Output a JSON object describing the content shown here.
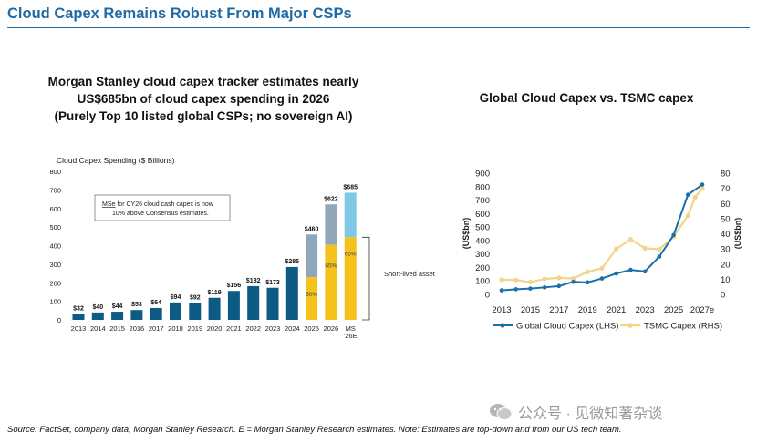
{
  "header": {
    "title": "Cloud Capex Remains Robust From Major CSPs"
  },
  "left_panel": {
    "heading_lines": [
      "Morgan Stanley cloud capex tracker estimates nearly",
      "US$685bn of cloud capex spending in 2026",
      "(Purely Top 10 listed global CSPs; no sovereign AI)"
    ]
  },
  "right_panel": {
    "heading": "Global Cloud Capex vs. TSMC capex"
  },
  "footer": {
    "source": "Source: FactSet, company data, Morgan Stanley Research. E = Morgan Stanley Research estimates. Note: Estimates are top-down and from our US tech team.",
    "watermark": "公众号 · 见微知著杂谈"
  },
  "chart_data": [
    {
      "type": "bar",
      "title": "Cloud Capex Spending ($ Billions)",
      "categories": [
        "2013",
        "2014",
        "2015",
        "2016",
        "2017",
        "2018",
        "2019",
        "2020",
        "2021",
        "2022",
        "2023",
        "2024",
        "2025",
        "2026",
        "MS\n'26E"
      ],
      "values": [
        32,
        40,
        44,
        53,
        64,
        94,
        92,
        119,
        156,
        182,
        173,
        285,
        460,
        622,
        685
      ],
      "value_labels": [
        "$32",
        "$40",
        "$44",
        "$53",
        "$64",
        "$94",
        "$92",
        "$119",
        "$156",
        "$182",
        "$173",
        "$285",
        "$460",
        "$622",
        "$685"
      ],
      "stacks": [
        {
          "index": 12,
          "short_lived": 230,
          "label": "50%"
        },
        {
          "index": 13,
          "short_lived": 404,
          "label": "65%"
        },
        {
          "index": 14,
          "short_lived": 445,
          "label": "65%"
        }
      ],
      "yticks": [
        0,
        100,
        200,
        300,
        400,
        500,
        600,
        700,
        800
      ],
      "ylim": [
        0,
        800
      ],
      "annotation": "MSe for CY26 cloud cash capex is now 10% above Consensus estimates.",
      "annotation_underlined": "MSe",
      "bracket_label": "Short-lived asset",
      "colors": {
        "base": "#0d5a85",
        "stack_base_estimate": "#8fa7b9",
        "short_lived": "#f5c21b",
        "top_ms": "#7fc8e5"
      }
    },
    {
      "type": "line",
      "x": [
        2013,
        2014,
        2015,
        2016,
        2017,
        2018,
        2019,
        2020,
        2021,
        2022,
        2023,
        2024,
        2025,
        2026,
        2027
      ],
      "xticks": [
        "2013",
        "2015",
        "2017",
        "2019",
        "2021",
        "2023",
        "2025",
        "2027e"
      ],
      "ylabel_left": "(US$bn)",
      "ylabel_right": "(US$bn)",
      "ylim_left": [
        0,
        900
      ],
      "ylim_right": [
        0,
        80
      ],
      "yticks_left": [
        0,
        100,
        200,
        300,
        400,
        500,
        600,
        700,
        800,
        900
      ],
      "yticks_right": [
        0,
        10,
        20,
        30,
        40,
        50,
        60,
        70,
        80
      ],
      "series": [
        {
          "name": "Global Cloud Capex (LHS)",
          "axis": "left",
          "color": "#1b6fa8",
          "values": [
            30,
            38,
            43,
            52,
            62,
            93,
            89,
            118,
            155,
            182,
            170,
            280,
            440,
            740,
            815
          ]
        },
        {
          "name": "TSMC Capex (RHS)",
          "axis": "right",
          "color": "#f3d58a",
          "x_values": [
            2013,
            2014,
            2015,
            2016,
            2017,
            2018,
            2019,
            2020,
            2021,
            2022,
            2023,
            2024,
            2025,
            2026,
            2026.5,
            2027
          ],
          "values": [
            9.7,
            9.5,
            8.1,
            10.2,
            10.9,
            10.5,
            14.9,
            17.2,
            30.0,
            36.3,
            30.4,
            29.8,
            38,
            52,
            64,
            70
          ]
        }
      ],
      "legend": "bottom",
      "grid": false
    }
  ]
}
